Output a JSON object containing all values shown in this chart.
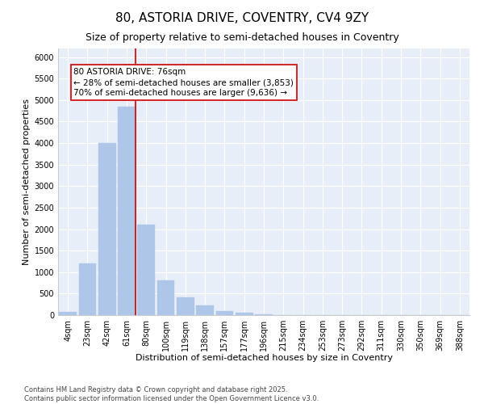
{
  "title_line1": "80, ASTORIA DRIVE, COVENTRY, CV4 9ZY",
  "title_line2": "Size of property relative to semi-detached houses in Coventry",
  "xlabel": "Distribution of semi-detached houses by size in Coventry",
  "ylabel": "Number of semi-detached properties",
  "footer_line1": "Contains HM Land Registry data © Crown copyright and database right 2025.",
  "footer_line2": "Contains public sector information licensed under the Open Government Licence v3.0.",
  "annotation_title": "80 ASTORIA DRIVE: 76sqm",
  "annotation_line1": "← 28% of semi-detached houses are smaller (3,853)",
  "annotation_line2": "70% of semi-detached houses are larger (9,636) →",
  "bar_labels": [
    "4sqm",
    "23sqm",
    "42sqm",
    "61sqm",
    "80sqm",
    "100sqm",
    "119sqm",
    "138sqm",
    "157sqm",
    "177sqm",
    "196sqm",
    "215sqm",
    "234sqm",
    "253sqm",
    "273sqm",
    "292sqm",
    "311sqm",
    "330sqm",
    "350sqm",
    "369sqm",
    "388sqm"
  ],
  "bar_values": [
    75,
    1200,
    4000,
    4850,
    2100,
    800,
    420,
    230,
    100,
    50,
    20,
    0,
    0,
    0,
    0,
    0,
    0,
    0,
    0,
    0,
    0
  ],
  "bar_color": "#aec6e8",
  "bar_edgecolor": "#aec6e8",
  "redline_color": "#cc0000",
  "annotation_box_edgecolor": "#cc0000",
  "background_color": "#e8eef8",
  "ylim": [
    0,
    6200
  ],
  "yticks": [
    0,
    500,
    1000,
    1500,
    2000,
    2500,
    3000,
    3500,
    4000,
    4500,
    5000,
    5500,
    6000
  ],
  "grid_color": "#ffffff",
  "title_fontsize": 11,
  "subtitle_fontsize": 9,
  "axis_label_fontsize": 8,
  "tick_fontsize": 7,
  "annotation_fontsize": 7.5,
  "footer_fontsize": 6
}
